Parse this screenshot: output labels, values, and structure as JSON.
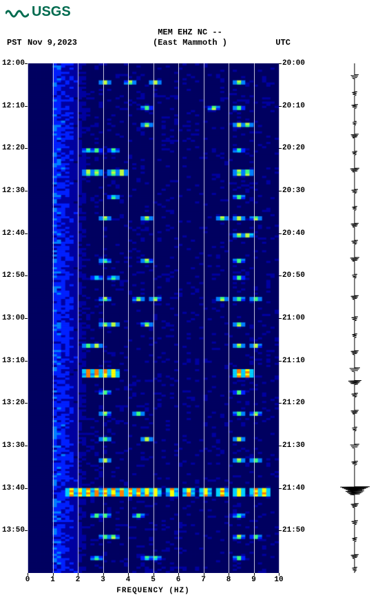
{
  "logo": {
    "text": "USGS",
    "color": "#006b4f"
  },
  "header": {
    "line1": "MEM EHZ NC --",
    "line2": "(East Mammoth )",
    "left_tz": "PST",
    "date": "Nov 9,2023",
    "right_tz": "UTC"
  },
  "spectrogram": {
    "type": "spectrogram",
    "xlim": [
      0,
      10
    ],
    "ylim_minutes": [
      0,
      120
    ],
    "left_time_labels": [
      "12:00",
      "12:10",
      "12:20",
      "12:30",
      "12:40",
      "12:50",
      "13:00",
      "13:10",
      "13:20",
      "13:30",
      "13:40",
      "13:50"
    ],
    "right_time_labels": [
      "20:00",
      "20:10",
      "20:20",
      "20:30",
      "20:40",
      "20:50",
      "21:00",
      "21:10",
      "21:20",
      "21:30",
      "21:40",
      "21:50"
    ],
    "tick_minutes": [
      0,
      10,
      20,
      30,
      40,
      50,
      60,
      70,
      80,
      90,
      100,
      110
    ],
    "xticks": [
      0,
      1,
      2,
      3,
      4,
      5,
      6,
      7,
      8,
      9,
      10
    ],
    "xlabel": "FREQUENCY (HZ)",
    "grid_color": "#bfbfd8",
    "background_color": "#00008b",
    "colormap": [
      "#000060",
      "#0000a0",
      "#0020ff",
      "#0080ff",
      "#00d0ff",
      "#40ff80",
      "#c0ff40",
      "#ffff00",
      "#ff8000",
      "#ff0000"
    ],
    "columns": 60,
    "rows": 240,
    "noise_base": 0.08,
    "low_freq_boost": {
      "below_col": 14,
      "factor": 0.4
    },
    "freq_columns": {
      "start": 6,
      "end": 60
    },
    "events": [
      {
        "row": 8,
        "span": 2,
        "cols": [
          18,
          24,
          30,
          50
        ],
        "intensity": 0.7
      },
      {
        "row": 20,
        "span": 2,
        "cols": [
          28,
          44,
          50
        ],
        "intensity": 0.65
      },
      {
        "row": 28,
        "span": 2,
        "cols": [
          28,
          50,
          52
        ],
        "intensity": 0.7
      },
      {
        "row": 40,
        "span": 2,
        "cols": [
          14,
          16,
          20,
          50
        ],
        "intensity": 0.6
      },
      {
        "row": 50,
        "span": 3,
        "cols": [
          14,
          16,
          20,
          22,
          50,
          52
        ],
        "intensity": 0.7
      },
      {
        "row": 62,
        "span": 2,
        "cols": [
          20,
          50
        ],
        "intensity": 0.6
      },
      {
        "row": 72,
        "span": 2,
        "cols": [
          18,
          28,
          46,
          50,
          54
        ],
        "intensity": 0.7
      },
      {
        "row": 80,
        "span": 2,
        "cols": [
          50,
          52
        ],
        "intensity": 0.75
      },
      {
        "row": 92,
        "span": 2,
        "cols": [
          18,
          28,
          50
        ],
        "intensity": 0.65
      },
      {
        "row": 100,
        "span": 2,
        "cols": [
          16,
          20,
          50
        ],
        "intensity": 0.6
      },
      {
        "row": 110,
        "span": 2,
        "cols": [
          18,
          26,
          30,
          46,
          50,
          54
        ],
        "intensity": 0.65
      },
      {
        "row": 122,
        "span": 2,
        "cols": [
          18,
          20,
          28,
          50
        ],
        "intensity": 0.7
      },
      {
        "row": 132,
        "span": 2,
        "cols": [
          14,
          16,
          50,
          54
        ],
        "intensity": 0.7
      },
      {
        "row": 144,
        "span": 4,
        "cols": [
          14,
          16,
          18,
          20,
          50,
          52
        ],
        "intensity": 0.92
      },
      {
        "row": 154,
        "span": 2,
        "cols": [
          18,
          50
        ],
        "intensity": 0.6
      },
      {
        "row": 164,
        "span": 2,
        "cols": [
          18,
          26,
          50,
          54
        ],
        "intensity": 0.65
      },
      {
        "row": 176,
        "span": 2,
        "cols": [
          18,
          28,
          50
        ],
        "intensity": 0.7
      },
      {
        "row": 186,
        "span": 2,
        "cols": [
          18,
          50,
          54
        ],
        "intensity": 0.7
      },
      {
        "row": 200,
        "span": 4,
        "cols": [
          10,
          12,
          14,
          16,
          18,
          20,
          22,
          24,
          26,
          28,
          30,
          34,
          38,
          42,
          46,
          50,
          54,
          56
        ],
        "intensity": 0.9
      },
      {
        "row": 212,
        "span": 2,
        "cols": [
          16,
          18,
          26,
          50
        ],
        "intensity": 0.6
      },
      {
        "row": 222,
        "span": 2,
        "cols": [
          18,
          20,
          50,
          54
        ],
        "intensity": 0.65
      },
      {
        "row": 232,
        "span": 2,
        "cols": [
          16,
          28,
          30,
          50
        ],
        "intensity": 0.6
      }
    ]
  },
  "seismogram": {
    "baseline_x": 25,
    "line_color": "#000000",
    "events": [
      {
        "min": 3,
        "amp": 6
      },
      {
        "min": 7,
        "amp": 4
      },
      {
        "min": 10,
        "amp": 5
      },
      {
        "min": 14,
        "amp": 3
      },
      {
        "min": 17,
        "amp": 6
      },
      {
        "min": 21,
        "amp": 4
      },
      {
        "min": 25,
        "amp": 7
      },
      {
        "min": 30,
        "amp": 5
      },
      {
        "min": 34,
        "amp": 4
      },
      {
        "min": 38,
        "amp": 6
      },
      {
        "min": 42,
        "amp": 5
      },
      {
        "min": 46,
        "amp": 7
      },
      {
        "min": 50,
        "amp": 4
      },
      {
        "min": 55,
        "amp": 6
      },
      {
        "min": 60,
        "amp": 5
      },
      {
        "min": 64,
        "amp": 4
      },
      {
        "min": 68,
        "amp": 6
      },
      {
        "min": 72,
        "amp": 8
      },
      {
        "min": 75,
        "amp": 10
      },
      {
        "min": 78,
        "amp": 5
      },
      {
        "min": 82,
        "amp": 6
      },
      {
        "min": 86,
        "amp": 4
      },
      {
        "min": 90,
        "amp": 7
      },
      {
        "min": 94,
        "amp": 5
      },
      {
        "min": 100,
        "amp": 22
      },
      {
        "min": 101,
        "amp": 14
      },
      {
        "min": 104,
        "amp": 6
      },
      {
        "min": 108,
        "amp": 5
      },
      {
        "min": 112,
        "amp": 4
      },
      {
        "min": 116,
        "amp": 6
      },
      {
        "min": 119,
        "amp": 4
      }
    ]
  }
}
